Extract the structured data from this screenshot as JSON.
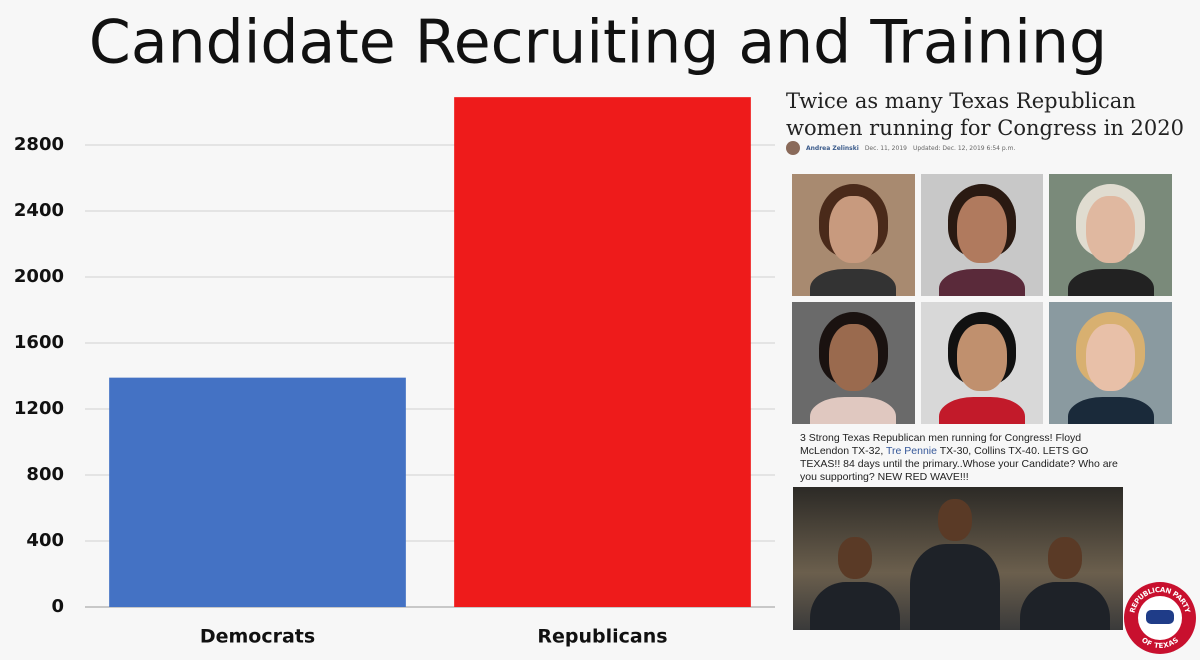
{
  "chart_data": {
    "type": "bar",
    "title": "Candidate Recruiting and Training",
    "categories": [
      "Democrats",
      "Republicans"
    ],
    "values": [
      1390,
      3090
    ],
    "colors": [
      "#4472c4",
      "#ee1b1b"
    ],
    "ylim": [
      0,
      3100
    ],
    "yticks": [
      0,
      400,
      800,
      1200,
      1600,
      2000,
      2400,
      2800
    ],
    "grid": true
  },
  "article": {
    "headline": "Twice as many Texas Republican women running for Congress in 2020",
    "author": "Andrea Zelinski",
    "date": "Dec. 11, 2019",
    "updated": "Updated: Dec. 12, 2019 6:54 p.m."
  },
  "post": {
    "text_before": "3 Strong Texas Republican men running for Congress! Floyd McLendon TX-32, ",
    "link": "Tre Pennie",
    "text_after": " TX-30, Collins TX-40. LETS GO TEXAS!! 84 days until the primary..Whose your Candidate? Who are you supporting? NEW RED WAVE!!!"
  },
  "logo": {
    "top": "REPUBLICAN PARTY",
    "bottom": "OF TEXAS"
  }
}
